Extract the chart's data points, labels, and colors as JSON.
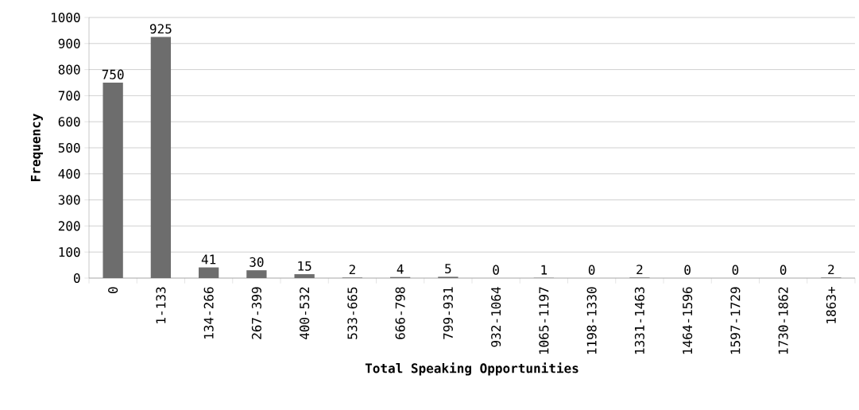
{
  "chart_data": {
    "type": "bar",
    "xlabel": "Total Speaking Opportunities",
    "ylabel": "Frequency",
    "categories": [
      "0",
      "1-133",
      "134-266",
      "267-399",
      "400-532",
      "533-665",
      "666-798",
      "799-931",
      "932-1064",
      "1065-1197",
      "1198-1330",
      "1331-1463",
      "1464-1596",
      "1597-1729",
      "1730-1862",
      "1863+"
    ],
    "values": [
      750,
      925,
      41,
      30,
      15,
      2,
      4,
      5,
      0,
      1,
      0,
      2,
      0,
      0,
      0,
      2
    ],
    "color": "#6d6d6d",
    "ylim": [
      0,
      1000
    ],
    "yticks": [
      0,
      100,
      200,
      300,
      400,
      500,
      600,
      700,
      800,
      900,
      1000
    ],
    "grid": "y",
    "data_labels": true
  }
}
